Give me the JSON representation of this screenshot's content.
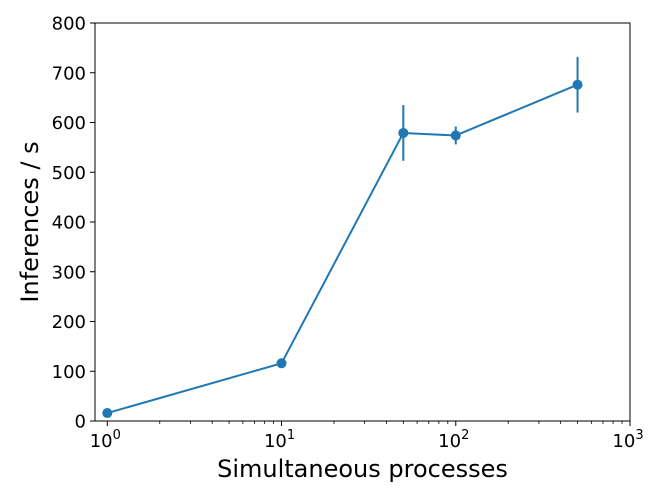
{
  "chart_data": {
    "type": "line",
    "xscale": "log",
    "xlabel": "Simultaneous processes",
    "ylabel": "Inferences / s",
    "xlim": [
      0.85,
      1000
    ],
    "ylim": [
      0,
      800
    ],
    "grid": false,
    "x_ticks": [
      {
        "value": 1,
        "base": "10",
        "exp": "0"
      },
      {
        "value": 10,
        "base": "10",
        "exp": "1"
      },
      {
        "value": 100,
        "base": "10",
        "exp": "2"
      },
      {
        "value": 1000,
        "base": "10",
        "exp": "3"
      }
    ],
    "y_ticks": [
      0,
      100,
      200,
      300,
      400,
      500,
      600,
      700,
      800
    ],
    "series": [
      {
        "color": "#1f77b4",
        "marker": "circle",
        "x": [
          1,
          10,
          50,
          100,
          500
        ],
        "y": [
          16,
          116,
          579,
          574,
          676
        ],
        "yerr": [
          0,
          0,
          56,
          18,
          56
        ]
      }
    ]
  }
}
